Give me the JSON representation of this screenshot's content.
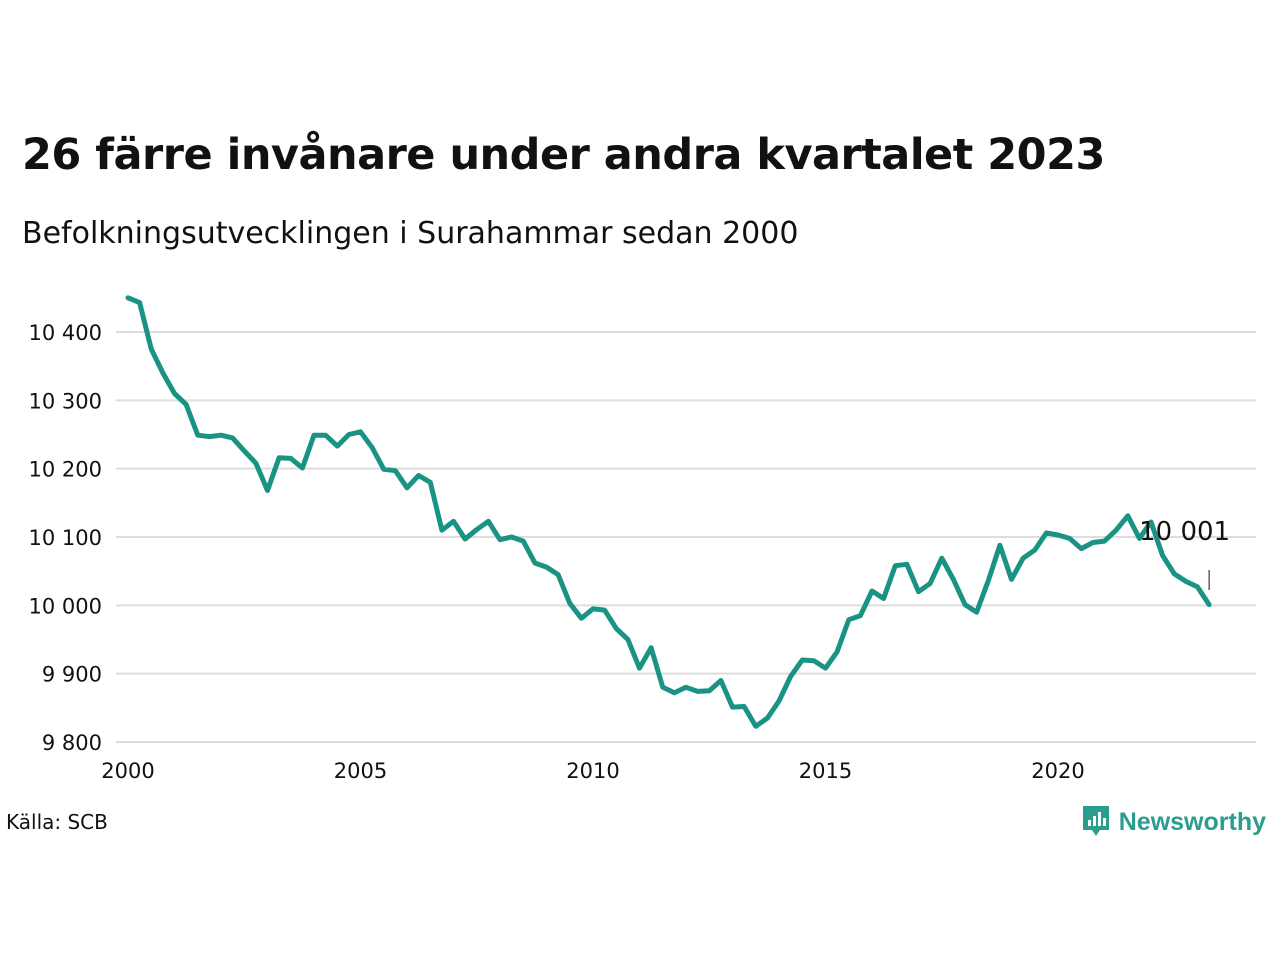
{
  "header": {
    "title": "26 färre invånare under andra kvartalet 2023",
    "subtitle": "Befolkningsutvecklingen i Surahammar sedan 2000"
  },
  "footer": {
    "source": "Källa: SCB",
    "brand": "Newsworthy",
    "brand_icon": "newsworthy-logo-icon"
  },
  "colors": {
    "line": "#1a9384",
    "grid": "#dddddd",
    "brand": "#2a9d8f"
  },
  "chart_data": {
    "type": "line",
    "grid": true,
    "ylim": [
      9800,
      10450
    ],
    "xlim": [
      2000,
      2024.2
    ],
    "x_ticks": [
      2000,
      2005,
      2010,
      2015,
      2020
    ],
    "x_tick_labels": [
      "2000",
      "2005",
      "2010",
      "2015",
      "2020"
    ],
    "y_ticks": [
      9800,
      9900,
      10000,
      10100,
      10200,
      10300,
      10400
    ],
    "y_tick_labels": [
      "9 800",
      "9 900",
      "10 000",
      "10 100",
      "10 200",
      "10 300",
      "10 400"
    ],
    "end_label": "10 001",
    "series": [
      {
        "x": [
          2000.0,
          2000.25,
          2000.5,
          2000.75,
          2001.0,
          2001.25,
          2001.5,
          2001.75,
          2002.0,
          2002.25,
          2002.5,
          2002.75,
          2003.0,
          2003.25,
          2003.5,
          2003.75,
          2004.0,
          2004.25,
          2004.5,
          2004.75,
          2005.0,
          2005.25,
          2005.5,
          2005.75,
          2006.0,
          2006.25,
          2006.5,
          2006.75,
          2007.0,
          2007.25,
          2007.5,
          2007.75,
          2008.0,
          2008.25,
          2008.5,
          2008.75,
          2009.0,
          2009.25,
          2009.5,
          2009.75,
          2010.0,
          2010.25,
          2010.5,
          2010.75,
          2011.0,
          2011.25,
          2011.5,
          2011.75,
          2012.0,
          2012.25,
          2012.5,
          2012.75,
          2013.0,
          2013.25,
          2013.5,
          2013.75,
          2014.0,
          2014.25,
          2014.5,
          2014.75,
          2015.0,
          2015.25,
          2015.5,
          2015.75,
          2016.0,
          2016.25,
          2016.5,
          2016.75,
          2017.0,
          2017.25,
          2017.5,
          2017.75,
          2018.0,
          2018.25,
          2018.5,
          2018.75,
          2019.0,
          2019.25,
          2019.5,
          2019.75,
          2020.0,
          2020.25,
          2020.5,
          2020.75,
          2021.0,
          2021.25,
          2021.5,
          2021.75,
          2022.0,
          2022.25,
          2022.5,
          2022.75,
          2023.0,
          2023.25
        ],
        "values": [
          10450,
          10443,
          10375,
          10340,
          10310,
          10294,
          10249,
          10247,
          10249,
          10245,
          10226,
          10208,
          10168,
          10216,
          10215,
          10201,
          10249,
          10249,
          10233,
          10250,
          10254,
          10231,
          10199,
          10197,
          10172,
          10190,
          10180,
          10110,
          10123,
          10097,
          10111,
          10123,
          10096,
          10100,
          10094,
          10062,
          10056,
          10045,
          10003,
          9981,
          9995,
          9993,
          9966,
          9950,
          9908,
          9938,
          9880,
          9872,
          9880,
          9874,
          9875,
          9890,
          9851,
          9852,
          9823,
          9835,
          9860,
          9896,
          9920,
          9919,
          9908,
          9932,
          9979,
          9985,
          10021,
          10010,
          10058,
          10060,
          10020,
          10032,
          10069,
          10038,
          10001,
          9990,
          10036,
          10088,
          10038,
          10069,
          10081,
          10106,
          10103,
          10098,
          10083,
          10092,
          10094,
          10110,
          10131,
          10098,
          10122,
          10073,
          10046,
          10035,
          10027,
          10001
        ]
      }
    ]
  }
}
